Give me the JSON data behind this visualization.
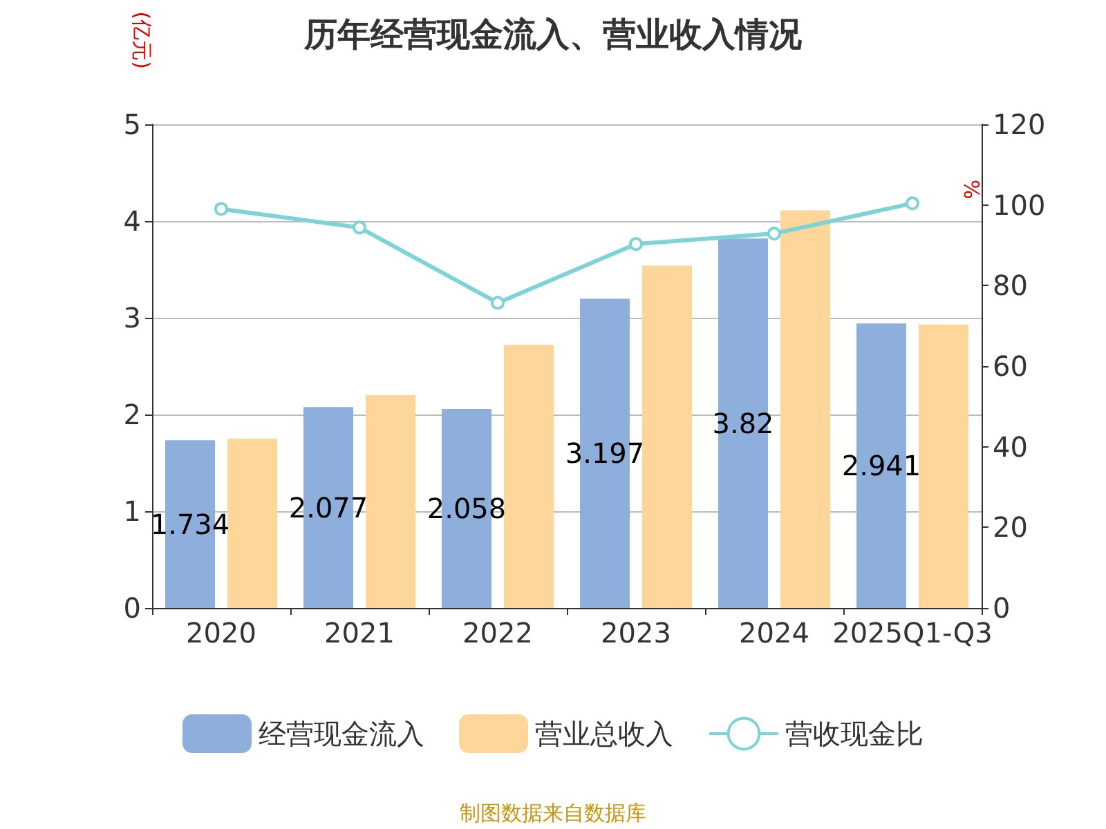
{
  "chart_data": {
    "type": "bar",
    "title": "历年经营现金流入、营业收入情况",
    "ylabel": "(亿元)",
    "y2label": "%",
    "categories": [
      "2020",
      "2021",
      "2022",
      "2023",
      "2024",
      "2025Q1-Q3"
    ],
    "series": [
      {
        "name": "经营现金流入",
        "color": "#8eaedb",
        "values": [
          1.734,
          2.077,
          2.058,
          3.197,
          3.82,
          2.941
        ],
        "value_labels": [
          "1.734",
          "2.077",
          "2.058",
          "3.197",
          "3.82",
          "2.941"
        ]
      },
      {
        "name": "营业总收入",
        "color": "#ffd699",
        "values": [
          1.75,
          2.2,
          2.72,
          3.54,
          4.11,
          2.93
        ]
      },
      {
        "name": "营收现金比",
        "type": "line",
        "axis": "y2",
        "color": "#7dd3d6",
        "values": [
          99,
          94.4,
          75.7,
          90.3,
          92.9,
          100.4
        ]
      }
    ],
    "ylim": [
      0,
      5
    ],
    "yticks": [
      0,
      1,
      2,
      3,
      4,
      5
    ],
    "y2lim": [
      0,
      120
    ],
    "y2ticks": [
      0,
      20,
      40,
      60,
      80,
      100,
      120
    ],
    "grid": "y",
    "legend": "bottom",
    "marker": "circle",
    "annotations": [
      "制图数据来自数据库"
    ]
  }
}
